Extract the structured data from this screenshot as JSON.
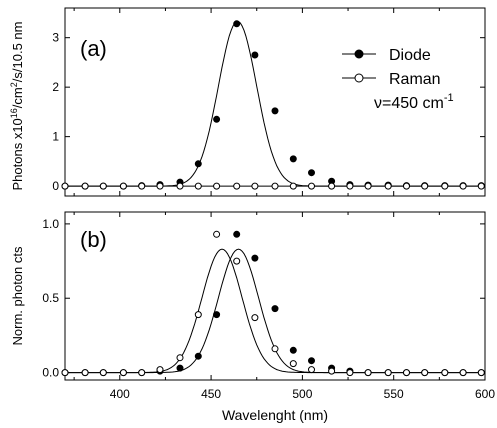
{
  "chart_data": [
    {
      "id": "a",
      "type": "scatter",
      "panel_label": "(a)",
      "ylabel_parts": [
        "Photons x10",
        "16",
        "/cm",
        "2",
        "/s/10.5 nm"
      ],
      "xlim": [
        370,
        600
      ],
      "ylim": [
        -0.2,
        3.6
      ],
      "yticks": [
        0,
        1,
        2,
        3
      ],
      "yticklabels": [
        "0",
        "1",
        "2",
        "3"
      ],
      "legend": {
        "position": "top-right",
        "entries": [
          {
            "label": "Diode",
            "marker": "filled-circle"
          },
          {
            "label": "Raman",
            "marker": "open-circle"
          }
        ],
        "note_prefix": "ν=450 cm",
        "note_sup": "-1"
      },
      "series": [
        {
          "name": "Diode",
          "marker": "filled",
          "x": [
            370,
            381,
            391,
            402,
            412,
            422,
            433,
            443,
            453,
            464,
            474,
            485,
            495,
            505,
            516,
            526,
            536,
            547,
            557,
            567,
            578,
            588,
            598
          ],
          "y": [
            0,
            0,
            0,
            0,
            0.01,
            0.03,
            0.08,
            0.45,
            1.35,
            3.28,
            2.65,
            1.52,
            0.55,
            0.27,
            0.1,
            0.03,
            0.02,
            0.02,
            0.01,
            0.01,
            0.01,
            0.01,
            0.01
          ],
          "curve": {
            "peak": 464.5,
            "amplitude": 3.33,
            "width": 10.5,
            "range": [
              370,
              600
            ]
          }
        },
        {
          "name": "Raman",
          "marker": "open",
          "x": [
            370,
            381,
            391,
            402,
            412,
            422,
            433,
            443,
            453,
            464,
            474,
            485,
            495,
            505,
            516,
            526,
            536,
            547,
            557,
            567,
            578,
            588,
            598
          ],
          "y": [
            0,
            0,
            0,
            0,
            0,
            0,
            0,
            0,
            0,
            0,
            0,
            0,
            0,
            0,
            0,
            0,
            0,
            0,
            0,
            0,
            0,
            0,
            0
          ],
          "curve": null
        }
      ]
    },
    {
      "id": "b",
      "type": "scatter",
      "panel_label": "(b)",
      "ylabel": "Norm. photon cts",
      "xlabel": "Wavelenght (nm)",
      "xlim": [
        370,
        600
      ],
      "ylim": [
        -0.05,
        1.08
      ],
      "xticks": [
        400,
        450,
        500,
        550,
        600
      ],
      "xticklabels": [
        "400",
        "450",
        "500",
        "550",
        "600"
      ],
      "yticks": [
        0.0,
        0.5,
        1.0
      ],
      "yticklabels": [
        "0.0",
        "0.5",
        "1.0"
      ],
      "series": [
        {
          "name": "Diode",
          "marker": "filled",
          "x": [
            370,
            381,
            391,
            402,
            412,
            422,
            433,
            443,
            453,
            464,
            474,
            485,
            495,
            505,
            516,
            526,
            536,
            547,
            557,
            567,
            578,
            588,
            598
          ],
          "y": [
            0,
            0,
            0,
            0,
            0,
            0.01,
            0.03,
            0.11,
            0.39,
            0.93,
            0.77,
            0.43,
            0.15,
            0.08,
            0.03,
            0.01,
            0,
            0,
            0,
            0,
            0,
            0,
            0
          ],
          "curve": {
            "peak": 465,
            "amplitude": 0.83,
            "width": 11,
            "range": [
              370,
              600
            ]
          }
        },
        {
          "name": "Raman",
          "marker": "open",
          "x": [
            370,
            381,
            391,
            402,
            412,
            422,
            433,
            443,
            453,
            464,
            474,
            485,
            495,
            505,
            516,
            526,
            536,
            547,
            557,
            567,
            578,
            588,
            598
          ],
          "y": [
            0,
            0,
            0,
            0,
            0,
            0.02,
            0.1,
            0.39,
            0.93,
            0.75,
            0.37,
            0.16,
            0.06,
            0.02,
            0.01,
            0,
            0,
            0,
            0,
            0,
            0,
            0,
            0
          ],
          "curve": {
            "peak": 456,
            "amplitude": 0.83,
            "width": 11,
            "range": [
              370,
              600
            ]
          }
        }
      ]
    }
  ]
}
